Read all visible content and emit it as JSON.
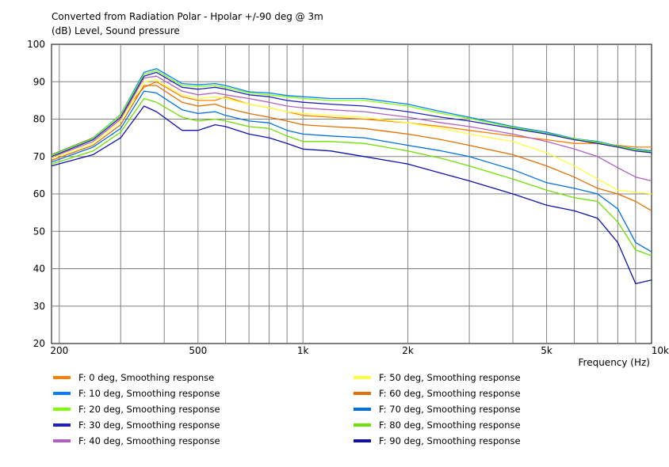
{
  "chart_data": {
    "type": "line",
    "title": "Converted from Radiation Polar - Hpolar +/-90 deg @ 3m",
    "ylabel": "(dB)  Level, Sound pressure",
    "xlabel": "Frequency  (Hz)",
    "x_scale": "log",
    "xlim": [
      190,
      10000
    ],
    "ylim": [
      20,
      100
    ],
    "y_ticks": [
      "20",
      "30",
      "40",
      "50",
      "60",
      "70",
      "80",
      "90",
      "100"
    ],
    "x_ticks": [
      {
        "value": 200,
        "label": "200"
      },
      {
        "value": 500,
        "label": "500"
      },
      {
        "value": 1000,
        "label": "1k"
      },
      {
        "value": 2000,
        "label": "2k"
      },
      {
        "value": 5000,
        "label": "5k"
      },
      {
        "value": 10000,
        "label": "10k"
      }
    ],
    "grid": true,
    "legend_position": "bottom",
    "x": [
      190,
      250,
      300,
      350,
      380,
      450,
      500,
      560,
      600,
      700,
      800,
      900,
      1000,
      1200,
      1500,
      2000,
      2500,
      3000,
      4000,
      5000,
      6000,
      7000,
      8000,
      9000,
      10000
    ],
    "series": [
      {
        "name": "F: 0 deg, Smoothing response",
        "color": "#ff8000",
        "values": [
          70.5,
          75,
          81,
          88.5,
          90,
          86,
          85,
          85,
          86,
          84,
          83,
          82,
          81,
          80.5,
          80,
          79,
          78,
          77,
          75.5,
          74.5,
          73.5,
          73.5,
          73,
          72.5,
          72.5
        ]
      },
      {
        "name": "F: 10 deg, Smoothing response",
        "color": "#0080ff",
        "values": [
          70.4,
          74.9,
          81.2,
          92.5,
          93.5,
          89.5,
          89.2,
          89.5,
          89,
          87.3,
          87,
          86.3,
          86,
          85.5,
          85.5,
          84,
          82,
          80.5,
          78,
          76.5,
          74.8,
          74,
          72.8,
          72,
          71.5
        ]
      },
      {
        "name": "F: 20 deg, Smoothing response",
        "color": "#80ff00",
        "values": [
          70.3,
          74.8,
          81.1,
          92,
          93,
          89,
          88.8,
          89,
          88.5,
          87,
          86.5,
          86,
          85.5,
          85,
          85,
          83.5,
          81.5,
          80.2,
          77.8,
          76.2,
          74.7,
          73.8,
          72.7,
          71.8,
          71.2
        ]
      },
      {
        "name": "F: 30 deg, Smoothing response",
        "color": "#2020c0",
        "values": [
          70,
          74.5,
          80.5,
          91.5,
          92.5,
          88.5,
          88,
          88.5,
          88,
          86.5,
          86,
          85,
          84.5,
          84,
          83.5,
          82,
          80.5,
          79.5,
          77.5,
          76,
          74.5,
          73.5,
          72.5,
          71.5,
          71
        ]
      },
      {
        "name": "F: 40 deg, Smoothing response",
        "color": "#b060c0",
        "values": [
          69.8,
          74,
          80,
          91,
          91.5,
          87.5,
          86.5,
          87,
          86.5,
          85.5,
          84.5,
          83.5,
          83,
          82.5,
          82,
          80.5,
          79,
          78,
          76,
          74,
          72,
          70,
          67,
          64.5,
          63.5
        ]
      },
      {
        "name": "F: 50 deg, Smoothing response",
        "color": "#ffff40",
        "values": [
          69.5,
          73.5,
          79.5,
          90,
          90.5,
          86.5,
          85.5,
          86,
          85.5,
          84,
          83,
          82,
          81.5,
          81,
          80.5,
          79,
          77.5,
          76,
          74,
          71,
          67.5,
          64,
          61,
          60.5,
          60
        ]
      },
      {
        "name": "F: 60 deg, Smoothing response",
        "color": "#e07000",
        "values": [
          69,
          73,
          78.5,
          89,
          89,
          84.5,
          83.5,
          84,
          83,
          81.5,
          80.5,
          79.5,
          78.5,
          78,
          77.5,
          76,
          74.5,
          73,
          70.5,
          67.5,
          64.5,
          61.5,
          60,
          58,
          55.5
        ]
      },
      {
        "name": "F: 70 deg, Smoothing response",
        "color": "#0070e0",
        "values": [
          68.5,
          72.5,
          77.5,
          87.5,
          87,
          82.5,
          81.5,
          82,
          81,
          79.5,
          79,
          77,
          76,
          75.5,
          75,
          73,
          71.5,
          70,
          66.5,
          63,
          61.5,
          60,
          56,
          47,
          44.5
        ]
      },
      {
        "name": "F: 80 deg, Smoothing response",
        "color": "#70e000",
        "values": [
          68,
          71.5,
          76.5,
          85.5,
          84.5,
          80.5,
          79.5,
          80,
          79.5,
          78,
          77.5,
          75.5,
          74,
          74,
          73.5,
          71.5,
          69.5,
          67.5,
          64,
          61,
          59,
          58,
          52.5,
          45,
          43.5
        ]
      },
      {
        "name": "F: 90 deg, Smoothing response",
        "color": "#1010b0",
        "values": [
          67.5,
          70.5,
          75,
          83.5,
          82,
          77,
          77,
          78.5,
          78,
          76,
          75,
          73.5,
          72,
          71.5,
          70,
          68,
          65.5,
          63.5,
          60,
          57,
          55.5,
          53.5,
          47,
          36,
          37
        ]
      }
    ]
  }
}
